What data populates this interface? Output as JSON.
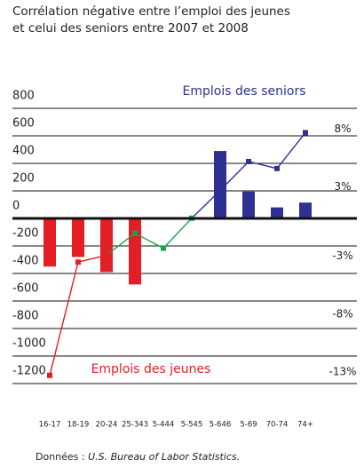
{
  "chart_data": {
    "type": "bar-line",
    "title": [
      "Corrélation négative entre l’emploi des jeunes",
      "et celui des seniors entre 2007 et 2008"
    ],
    "annotations": [
      {
        "text": "Emplois des seniors",
        "color": "#2e3192"
      },
      {
        "text": "Emplois des jeunes",
        "color": "#e31e24"
      }
    ],
    "source_prefix": "Données : ",
    "source": "U.S. Bureau of Labor Statistics.",
    "categories": [
      "16-17",
      "18-19",
      "20-24",
      "25-343",
      "5-444",
      "5-545",
      "5-646",
      "5-69",
      "70-74",
      "74+"
    ],
    "series": [
      {
        "type": "bar",
        "colors": [
          "#e31e24",
          "#e31e24",
          "#e31e24",
          "#e31e24",
          null,
          null,
          "#2e3192",
          "#2e3192",
          "#2e3192",
          "#2e3192"
        ],
        "values": [
          -350,
          -280,
          -390,
          -480,
          null,
          null,
          490,
          195,
          80,
          115
        ]
      },
      {
        "type": "line",
        "axis": "y2",
        "colors": [
          "#e31e24",
          "#e31e24",
          "#e31e24",
          "#1aa34a",
          "#1aa34a",
          "#1aa34a",
          "#2e3192",
          "#2e3192",
          "#2e3192",
          "#2e3192"
        ],
        "values": [
          -13.3,
          -3.5,
          -2.9,
          -1.0,
          -2.3,
          0.3,
          2.7,
          5.2,
          4.6,
          7.7
        ]
      }
    ],
    "ylim": [
      -1300,
      900
    ],
    "yticks": [
      800,
      600,
      400,
      200,
      0,
      -200,
      -400,
      -600,
      -800,
      -1000,
      -1200
    ],
    "y2lim": [
      -15.2,
      11.0
    ],
    "y2ticks": [
      {
        "value": 8,
        "label": "8%"
      },
      {
        "value": 3,
        "label": "3%"
      },
      {
        "value": -3,
        "label": "-3%"
      },
      {
        "value": -8,
        "label": "-8%"
      },
      {
        "value": -13,
        "label": "-13%"
      }
    ],
    "grid": true
  }
}
